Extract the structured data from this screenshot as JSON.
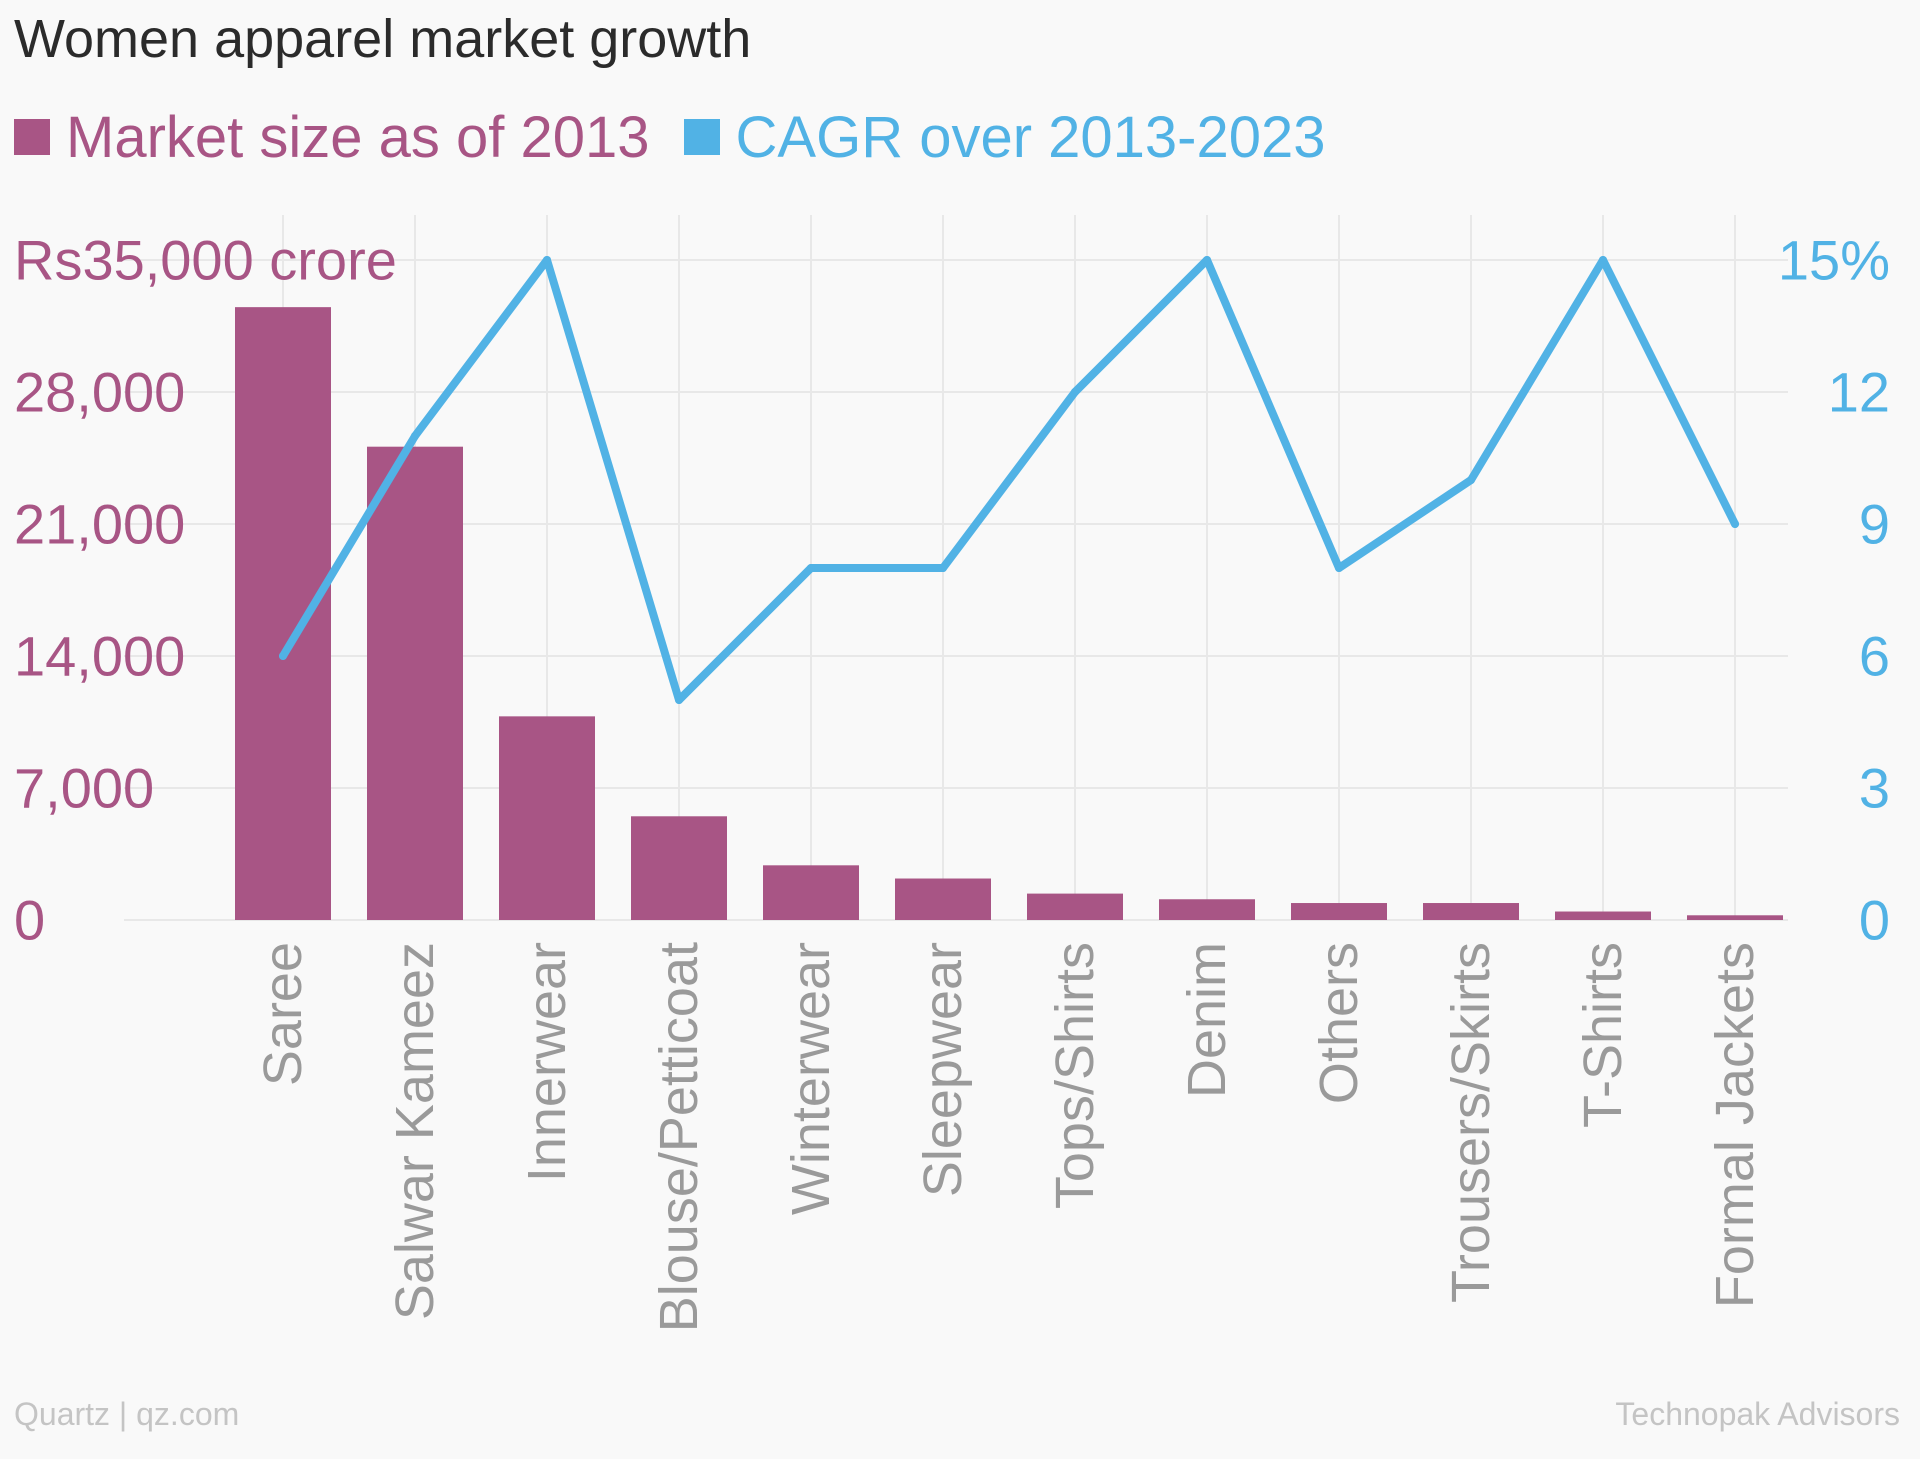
{
  "title": "Women apparel market growth",
  "legend": {
    "bars": "Market size as of 2013",
    "line": "CAGR over 2013-2023"
  },
  "footer": {
    "credit": "Quartz | qz.com",
    "source": "Technopak Advisors"
  },
  "colors": {
    "bars": "#a85585",
    "line": "#51b2e5",
    "grid": "#e8e8e8",
    "category_label": "#9a9a9a",
    "title": "#2b2b2b",
    "footer": "#c4c4c4"
  },
  "chart_data": {
    "type": "bar",
    "title": "Women apparel market growth",
    "categories": [
      "Saree",
      "Salwar Kameez",
      "Innerwear",
      "Blouse/Petticoat",
      "Winterwear",
      "Sleepwear",
      "Tops/Shirts",
      "Denim",
      "Others",
      "Trousers/Skirts",
      "T-Shirts",
      "Formal Jackets"
    ],
    "series": [
      {
        "name": "Market size as of 2013",
        "type": "bar",
        "axis": "left",
        "values": [
          32500,
          25100,
          10800,
          5500,
          2900,
          2200,
          1400,
          1100,
          900,
          900,
          450,
          250
        ]
      },
      {
        "name": "CAGR over 2013-2023",
        "type": "line",
        "axis": "right",
        "values": [
          6,
          11,
          15,
          5,
          8,
          8,
          12,
          15,
          8,
          10,
          15,
          9
        ]
      }
    ],
    "y_left": {
      "ylim": [
        0,
        35000
      ],
      "ticks": [
        0,
        7000,
        14000,
        21000,
        28000,
        35000
      ],
      "tick_labels": [
        "0",
        "7,000",
        "14,000",
        "21,000",
        "28,000",
        "Rs35,000 crore"
      ]
    },
    "y_right": {
      "ylim": [
        0,
        15
      ],
      "ticks": [
        0,
        3,
        6,
        9,
        12,
        15
      ],
      "tick_labels": [
        "0",
        "3",
        "6",
        "9",
        "12",
        "15%"
      ]
    },
    "grid": true,
    "legend_position": "top-left"
  }
}
